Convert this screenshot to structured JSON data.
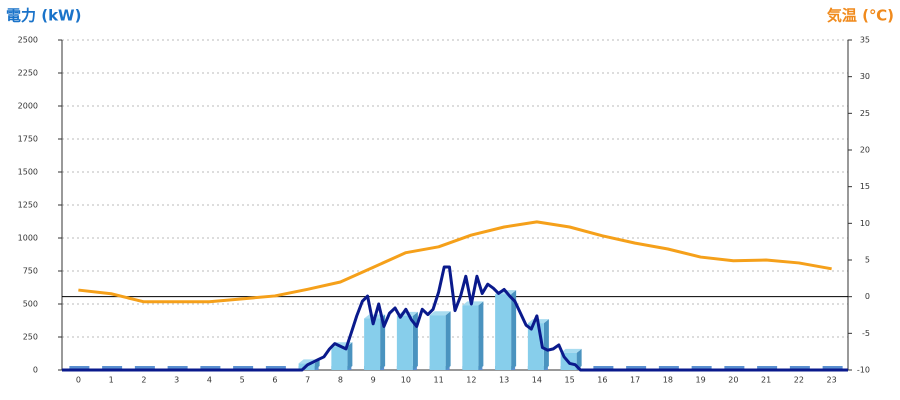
{
  "chart_data": {
    "type": "bar-line",
    "y_title": "電力 (kW)",
    "y2_title": "気温 (℃)",
    "categories": [
      "0",
      "1",
      "2",
      "3",
      "4",
      "5",
      "6",
      "7",
      "8",
      "9",
      "10",
      "11",
      "12",
      "13",
      "14",
      "15",
      "16",
      "17",
      "18",
      "19",
      "20",
      "21",
      "22",
      "23"
    ],
    "xlim": [
      -0.5,
      23.5
    ],
    "ylim": [
      0,
      2500
    ],
    "yticks": [
      0,
      250,
      500,
      750,
      1000,
      1250,
      1500,
      1750,
      2000,
      2250,
      2500
    ],
    "y2lim": [
      -10,
      35
    ],
    "y2ticks": [
      -10,
      -5,
      0,
      5,
      10,
      15,
      20,
      25,
      30,
      35
    ],
    "grid": true,
    "series": [
      {
        "kind": "bar",
        "color": "#87ceeb",
        "values": [
          0,
          0,
          0,
          0,
          0,
          0,
          0,
          50,
          180,
          390,
          410,
          415,
          490,
          575,
          355,
          130,
          0,
          0,
          0,
          0,
          0,
          0,
          0,
          0
        ]
      },
      {
        "kind": "line",
        "color": "#0a1a8c",
        "x": [
          -0.5,
          6.83,
          7.0,
          7.17,
          7.33,
          7.5,
          7.67,
          7.83,
          8.0,
          8.17,
          8.33,
          8.5,
          8.67,
          8.83,
          9.0,
          9.17,
          9.33,
          9.5,
          9.67,
          9.83,
          10.0,
          10.17,
          10.33,
          10.5,
          10.67,
          10.83,
          11.0,
          11.17,
          11.33,
          11.5,
          11.67,
          11.83,
          12.0,
          12.17,
          12.33,
          12.5,
          12.67,
          12.83,
          13.0,
          13.17,
          13.33,
          13.5,
          13.67,
          13.83,
          14.0,
          14.17,
          14.33,
          14.5,
          14.67,
          14.83,
          15.0,
          15.17,
          15.33,
          23.5
        ],
        "values": [
          0,
          0,
          40,
          60,
          80,
          100,
          160,
          200,
          180,
          160,
          280,
          410,
          520,
          560,
          350,
          500,
          330,
          430,
          470,
          400,
          460,
          380,
          330,
          460,
          420,
          460,
          590,
          780,
          780,
          450,
          560,
          710,
          500,
          710,
          580,
          650,
          620,
          580,
          610,
          560,
          520,
          430,
          340,
          310,
          410,
          170,
          150,
          160,
          190,
          100,
          50,
          40,
          0,
          0
        ]
      },
      {
        "kind": "line",
        "axis": "y2",
        "color": "#f5a01a",
        "values": [
          0.9,
          0.4,
          -0.7,
          -0.7,
          -0.7,
          -0.3,
          0.1,
          1.0,
          2.0,
          4.0,
          6.0,
          6.8,
          8.4,
          9.5,
          10.2,
          9.5,
          8.3,
          7.3,
          6.5,
          5.4,
          4.9,
          5.0,
          4.6,
          3.8
        ]
      }
    ]
  }
}
